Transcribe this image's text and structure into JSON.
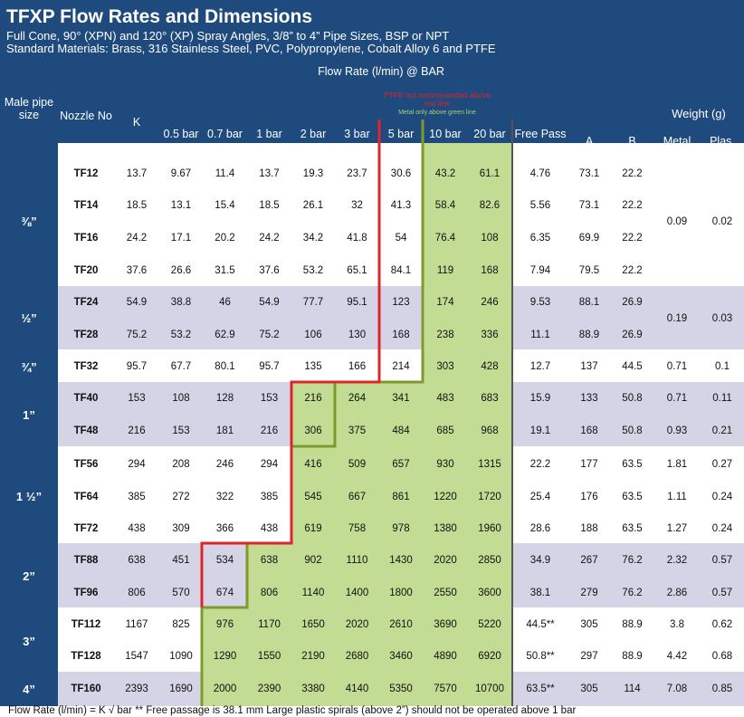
{
  "title": "TFXP Flow Rates and Dimensions",
  "subtitle1": "Full Cone, 90° (XPN) and 120° (XP) Spray Angles, 3/8” to 4” Pipe Sizes, BSP or NPT",
  "subtitle2": "Standard Materials: Brass, 316 Stainless Steel, PVC, Polypropylene, Cobalt Alloy 6 and PTFE",
  "flow_header": "Flow Rate (l/min) @ BAR",
  "note_red": "PTFE not recommended above red line",
  "note_green": "Metal only above green line",
  "headers": {
    "size": "Male pipe size",
    "nozzle": "Nozzle No",
    "k": "K",
    "b05": "0.5 bar",
    "b07": "0.7 bar",
    "b1": "1 bar",
    "b2": "2 bar",
    "b3": "3 bar",
    "b5": "5 bar",
    "b10": "10 bar",
    "b20": "20 bar",
    "free": "Free Pass",
    "a": "A",
    "b": "B",
    "weight": "Weight (g)",
    "metal": "Metal",
    "plas": "Plas."
  },
  "sizes": [
    "⅜”",
    "½”",
    "¾”",
    "1”",
    "1 ½”",
    "2”",
    "3”",
    "4”"
  ],
  "rows": [
    [
      "TF12",
      "13.7",
      "9.67",
      "11.4",
      "13.7",
      "19.3",
      "23.7",
      "30.6",
      "43.2",
      "61.1",
      "4.76",
      "73.1",
      "22.2"
    ],
    [
      "TF14",
      "18.5",
      "13.1",
      "15.4",
      "18.5",
      "26.1",
      "32",
      "41.3",
      "58.4",
      "82.6",
      "5.56",
      "73.1",
      "22.2"
    ],
    [
      "TF16",
      "24.2",
      "17.1",
      "20.2",
      "24.2",
      "34.2",
      "41.8",
      "54",
      "76.4",
      "108",
      "6.35",
      "69.9",
      "22.2"
    ],
    [
      "TF20",
      "37.6",
      "26.6",
      "31.5",
      "37.6",
      "53.2",
      "65.1",
      "84.1",
      "119",
      "168",
      "7.94",
      "79.5",
      "22.2"
    ],
    [
      "TF24",
      "54.9",
      "38.8",
      "46",
      "54.9",
      "77.7",
      "95.1",
      "123",
      "174",
      "246",
      "9.53",
      "88.1",
      "26.9"
    ],
    [
      "TF28",
      "75.2",
      "53.2",
      "62.9",
      "75.2",
      "106",
      "130",
      "168",
      "238",
      "336",
      "11.1",
      "88.9",
      "26.9"
    ],
    [
      "TF32",
      "95.7",
      "67.7",
      "80.1",
      "95.7",
      "135",
      "166",
      "214",
      "303",
      "428",
      "12.7",
      "137",
      "44.5"
    ],
    [
      "TF40",
      "153",
      "108",
      "128",
      "153",
      "216",
      "264",
      "341",
      "483",
      "683",
      "15.9",
      "133",
      "50.8"
    ],
    [
      "TF48",
      "216",
      "153",
      "181",
      "216",
      "306",
      "375",
      "484",
      "685",
      "968",
      "19.1",
      "168",
      "50.8"
    ],
    [
      "TF56",
      "294",
      "208",
      "246",
      "294",
      "416",
      "509",
      "657",
      "930",
      "1315",
      "22.2",
      "177",
      "63.5"
    ],
    [
      "TF64",
      "385",
      "272",
      "322",
      "385",
      "545",
      "667",
      "861",
      "1220",
      "1720",
      "25.4",
      "176",
      "63.5"
    ],
    [
      "TF72",
      "438",
      "309",
      "366",
      "438",
      "619",
      "758",
      "978",
      "1380",
      "1960",
      "28.6",
      "188",
      "63.5"
    ],
    [
      "TF88",
      "638",
      "451",
      "534",
      "638",
      "902",
      "1110",
      "1430",
      "2020",
      "2850",
      "34.9",
      "267",
      "76.2"
    ],
    [
      "TF96",
      "806",
      "570",
      "674",
      "806",
      "1140",
      "1400",
      "1800",
      "2550",
      "3600",
      "38.1",
      "279",
      "76.2"
    ],
    [
      "TF112",
      "1167",
      "825",
      "976",
      "1170",
      "1650",
      "2020",
      "2610",
      "3690",
      "5220",
      "44.5**",
      "305",
      "88.9"
    ],
    [
      "TF128",
      "1547",
      "1090",
      "1290",
      "1550",
      "2190",
      "2680",
      "3460",
      "4890",
      "6920",
      "50.8**",
      "297",
      "88.9"
    ],
    [
      "TF160",
      "2393",
      "1690",
      "2000",
      "2390",
      "3380",
      "4140",
      "5350",
      "7570",
      "10700",
      "63.5**",
      "305",
      "114"
    ]
  ],
  "weights": [
    {
      "metal": "0.09",
      "plas": "0.02"
    },
    {
      "metal": "0.19",
      "plas": "0.03"
    },
    {
      "metal": "0.71",
      "plas": "0.1"
    },
    {
      "metal": "0.71",
      "plas": "0.11"
    },
    {
      "metal": "0.93",
      "plas": "0.21"
    },
    {
      "metal": "1.81",
      "plas": "0.27"
    },
    {
      "metal": "1.11",
      "plas": "0.24"
    },
    {
      "metal": "1.27",
      "plas": "0.24"
    },
    {
      "metal": "2.32",
      "plas": "0.57"
    },
    {
      "metal": "2.86",
      "plas": "0.57"
    },
    {
      "metal": "3.8",
      "plas": "0.62"
    },
    {
      "metal": "4.42",
      "plas": "0.68"
    },
    {
      "metal": "7.08",
      "plas": "0.85"
    }
  ],
  "footer": "Flow Rate (l/min) = K √ bar        ** Free passage is 38.1 mm        Large plastic spirals (above 2”) should not be operated above 1 bar",
  "colors": {
    "navy": "#1e4a7e",
    "band": "#d4d4e6",
    "green": "#c3dc93",
    "red": "#e0242a",
    "olive": "#7f9a2a"
  }
}
